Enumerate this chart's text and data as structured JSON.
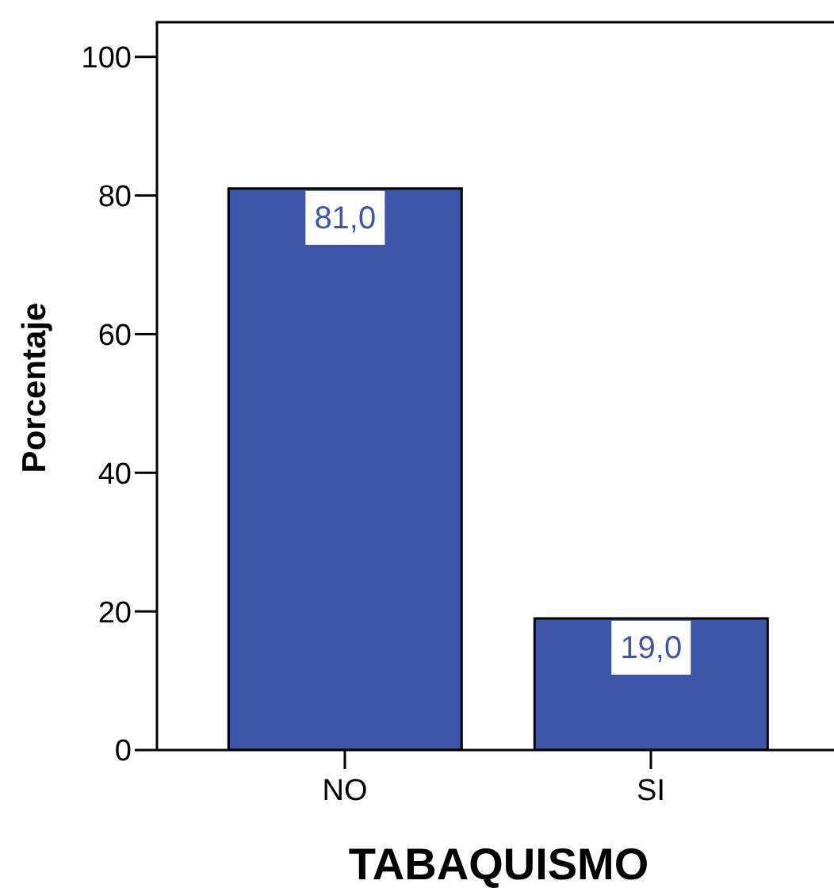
{
  "chart_data": {
    "type": "bar",
    "xlabel": "TABAQUISMO",
    "ylabel": "Porcentaje",
    "categories": [
      "NO",
      "SI"
    ],
    "values": [
      81,
      19
    ],
    "value_labels": [
      "81,0",
      "19,0"
    ],
    "color": "#3e56a8",
    "ylim": [
      0,
      105
    ],
    "yticks": [
      0,
      20,
      40,
      60,
      80,
      100
    ]
  }
}
